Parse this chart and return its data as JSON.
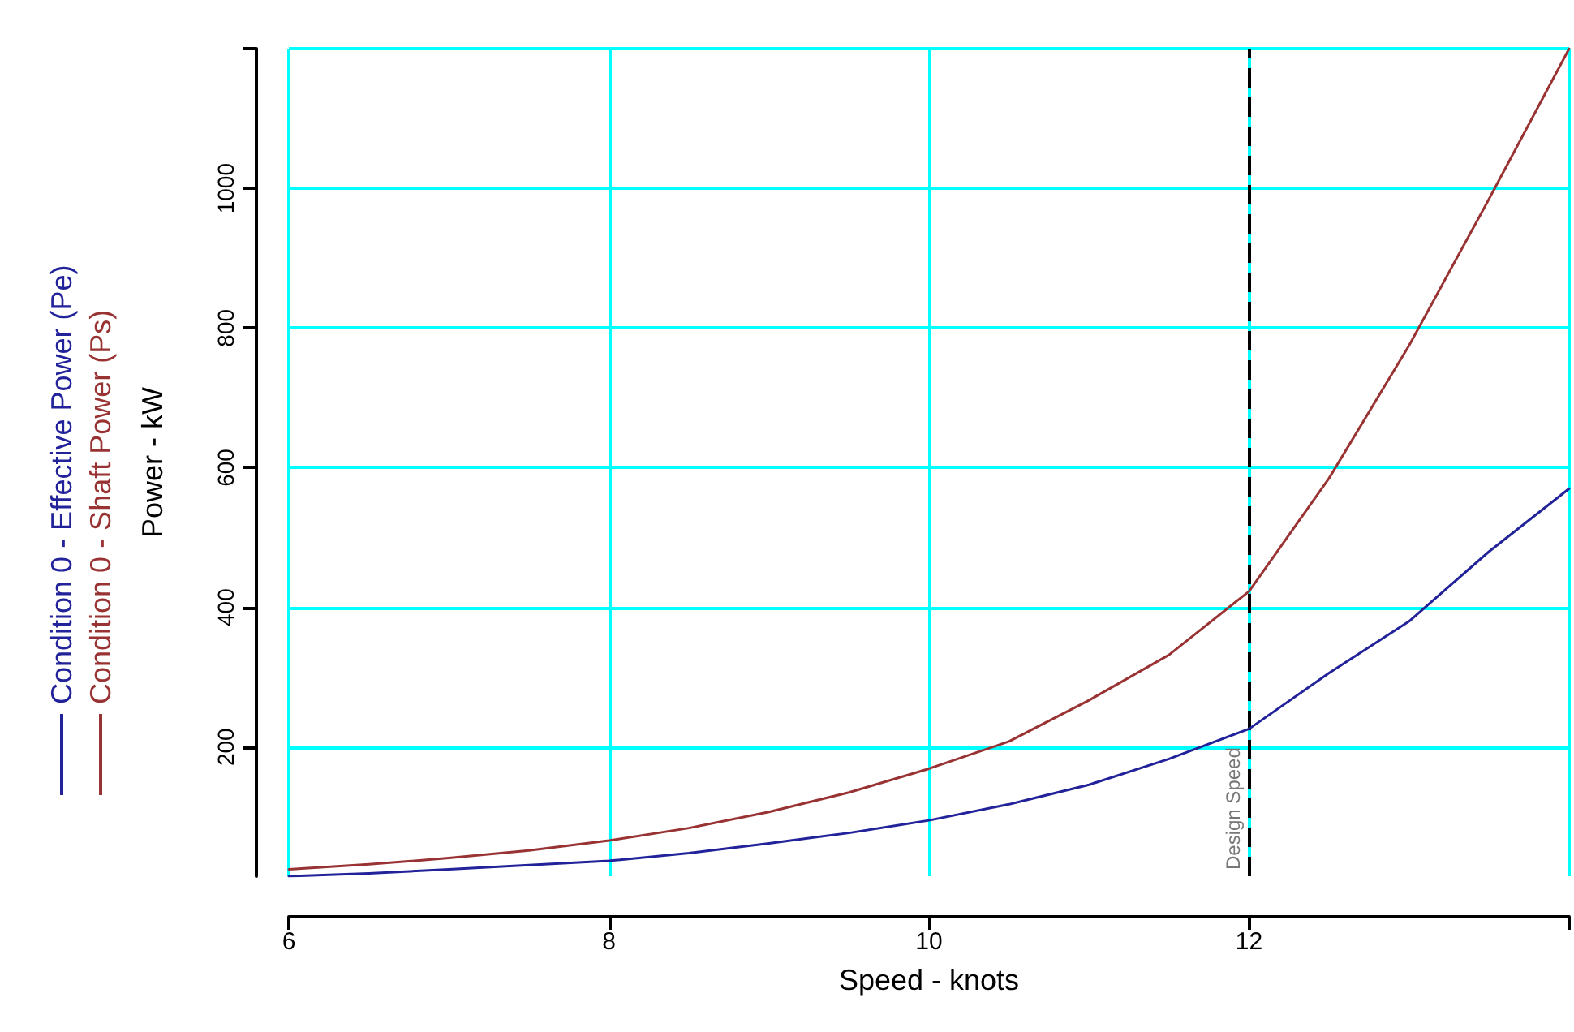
{
  "chart_data": {
    "type": "line",
    "xlabel": "Speed - knots",
    "ylabel": "Power - kW",
    "x": [
      6,
      6.5,
      7,
      7.5,
      8,
      8.5,
      9,
      9.5,
      10,
      10.5,
      11,
      11.5,
      12,
      12.5,
      13,
      13.5,
      14
    ],
    "series": [
      {
        "name": "Condition 0 - Effective Power (Pe)",
        "color": "#22229a",
        "values": [
          15,
          19,
          25,
          31,
          37,
          48,
          62,
          77,
          95,
          118,
          146,
          183,
          226,
          306,
          380,
          480,
          570
        ]
      },
      {
        "name": "Condition 0 - Shaft Power (Ps)",
        "color": "#993333",
        "values": [
          25,
          32,
          41,
          52,
          66,
          84,
          107,
          135,
          169,
          208,
          267,
          332,
          423,
          585,
          775,
          985,
          1200
        ]
      }
    ],
    "xlim": [
      6,
      14
    ],
    "xticks": [
      6,
      8,
      10,
      12,
      {
        "value": 14,
        "label": null
      }
    ],
    "ylim": [
      15,
      1200
    ],
    "yticks": [
      200,
      400,
      600,
      800,
      1000,
      {
        "value": 1200,
        "label": null
      }
    ],
    "ref_lines": [
      {
        "axis": "x",
        "value": 12,
        "label": "Design Speed",
        "color": "#000000",
        "line_style": "dashed"
      }
    ],
    "grid": true,
    "legend": "left",
    "marker": "none",
    "line_style": "solid"
  }
}
